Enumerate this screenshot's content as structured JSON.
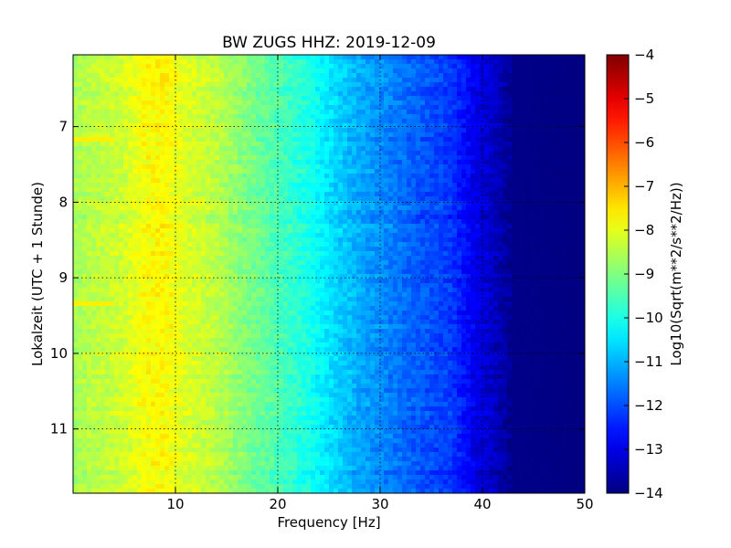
{
  "chart_data": {
    "type": "heatmap",
    "title": "BW ZUGS HHZ: 2019-12-09",
    "xlabel": "Frequency [Hz]",
    "ylabel": "Lokalzeit (UTC + 1 Stunde)",
    "xlim": [
      0,
      50
    ],
    "ylim": [
      6.05,
      11.85
    ],
    "y_inverted": true,
    "xticks": [
      10,
      20,
      30,
      40,
      50
    ],
    "yticks": [
      7,
      8,
      9,
      10,
      11
    ],
    "grid": true,
    "colormap": "jet",
    "colorbar": {
      "label": "Log10(Sqrt(m**2/s**2/Hz))",
      "range": [
        -14,
        -4
      ],
      "ticks": [
        -14,
        -13,
        -12,
        -11,
        -10,
        -9,
        -8,
        -7,
        -6,
        -5,
        -4
      ]
    },
    "value_profile_by_frequency": [
      {
        "x": 0,
        "value": -8.6
      },
      {
        "x": 2,
        "value": -8.4
      },
      {
        "x": 5,
        "value": -8.2
      },
      {
        "x": 7,
        "value": -7.8
      },
      {
        "x": 9,
        "value": -7.7
      },
      {
        "x": 11,
        "value": -8.1
      },
      {
        "x": 14,
        "value": -8.4
      },
      {
        "x": 17,
        "value": -9.0
      },
      {
        "x": 20,
        "value": -9.5
      },
      {
        "x": 23,
        "value": -10.0
      },
      {
        "x": 25,
        "value": -10.5
      },
      {
        "x": 28,
        "value": -11.1
      },
      {
        "x": 31,
        "value": -11.5
      },
      {
        "x": 34,
        "value": -11.9
      },
      {
        "x": 37,
        "value": -12.2
      },
      {
        "x": 39,
        "value": -12.9
      },
      {
        "x": 41,
        "value": -13.3
      },
      {
        "x": 43,
        "value": -13.9
      },
      {
        "x": 50,
        "value": -14.0
      }
    ],
    "features": [
      {
        "type": "bright_band",
        "x_range": [
          0,
          4
        ],
        "y": 7.15,
        "value": -7.6
      },
      {
        "type": "bright_band",
        "x_range": [
          0,
          4
        ],
        "y": 9.35,
        "value": -7.6
      }
    ]
  }
}
